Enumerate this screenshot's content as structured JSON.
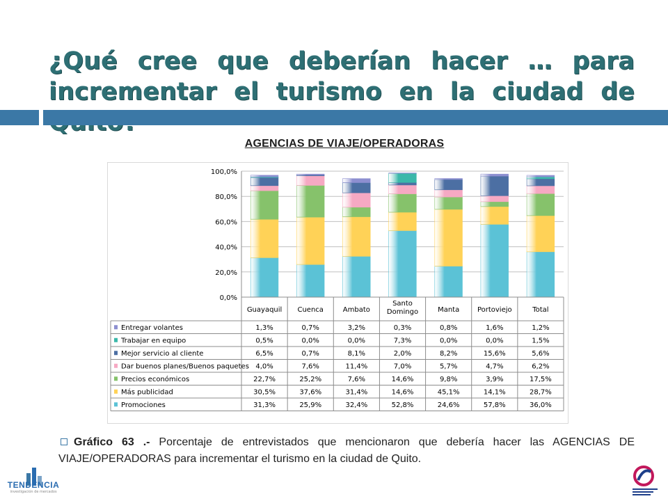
{
  "slide": {
    "title": "¿Qué cree que deberían hacer … para incrementar el turismo en la ciudad de Quito?",
    "chart_heading": "AGENCIAS DE VIAJE/OPERADORAS",
    "caption_label": "Gráfico 63 .-",
    "caption_text": " Porcentaje de entrevistados que mencionaron que debería hacer las AGENCIAS DE VIAJE/OPERADORAS para incrementar el turismo en la ciudad de Quito."
  },
  "logos": {
    "left_brand": "TENDENCIA",
    "left_sub": "investigación de mercados"
  },
  "chart_data": {
    "type": "bar",
    "stacked": true,
    "title": "",
    "xlabel": "",
    "ylabel": "",
    "ylim": [
      0,
      100
    ],
    "yticks": [
      "0,0%",
      "20,0%",
      "40,0%",
      "60,0%",
      "80,0%",
      "100,0%"
    ],
    "grid": true,
    "legend": "table-below",
    "categories": [
      "Guayaquil",
      "Cuenca",
      "Ambato",
      "Santo Domingo",
      "Manta",
      "Portoviejo",
      "Total"
    ],
    "series": [
      {
        "name": "Promociones",
        "color": "#5bc2d6",
        "values": [
          31.3,
          25.9,
          32.4,
          52.8,
          24.6,
          57.8,
          36.0
        ],
        "labels": [
          "31,3%",
          "25,9%",
          "32,4%",
          "52,8%",
          "24,6%",
          "57,8%",
          "36,0%"
        ]
      },
      {
        "name": "Más publicidad",
        "color": "#ffd257",
        "values": [
          30.5,
          37.6,
          31.4,
          14.6,
          45.1,
          14.1,
          28.7
        ],
        "labels": [
          "30,5%",
          "37,6%",
          "31,4%",
          "14,6%",
          "45,1%",
          "14,1%",
          "28,7%"
        ]
      },
      {
        "name": "Precios económicos",
        "color": "#86c26b",
        "values": [
          22.7,
          25.2,
          7.6,
          14.6,
          9.8,
          3.9,
          17.5
        ],
        "labels": [
          "22,7%",
          "25,2%",
          "7,6%",
          "14,6%",
          "9,8%",
          "3,9%",
          "17,5%"
        ]
      },
      {
        "name": "Dar buenos planes/Buenos paquetes",
        "color": "#f6a9c3",
        "values": [
          4.0,
          7.6,
          11.4,
          7.0,
          5.7,
          4.7,
          6.2
        ],
        "labels": [
          "4,0%",
          "7,6%",
          "11,4%",
          "7,0%",
          "5,7%",
          "4,7%",
          "6,2%"
        ]
      },
      {
        "name": "Mejor servicio al cliente",
        "color": "#4c6fa3",
        "values": [
          6.5,
          0.7,
          8.1,
          2.0,
          8.2,
          15.6,
          5.6
        ],
        "labels": [
          "6,5%",
          "0,7%",
          "8,1%",
          "2,0%",
          "8,2%",
          "15,6%",
          "5,6%"
        ]
      },
      {
        "name": "Trabajar en equipo",
        "color": "#3bb8aa",
        "values": [
          0.5,
          0.0,
          0.0,
          7.3,
          0.0,
          0.0,
          1.5
        ],
        "labels": [
          "0,5%",
          "0,0%",
          "0,0%",
          "7,3%",
          "0,0%",
          "0,0%",
          "1,5%"
        ]
      },
      {
        "name": "Entregar volantes",
        "color": "#8d8fd0",
        "values": [
          1.3,
          0.7,
          3.2,
          0.3,
          0.8,
          1.6,
          1.2
        ],
        "labels": [
          "1,3%",
          "0,7%",
          "3,2%",
          "0,3%",
          "0,8%",
          "1,6%",
          "1,2%"
        ]
      }
    ],
    "table_order": [
      "Entregar volantes",
      "Trabajar en equipo",
      "Mejor servicio al cliente",
      "Dar buenos planes/Buenos paquetes",
      "Precios económicos",
      "Más publicidad",
      "Promociones"
    ]
  }
}
